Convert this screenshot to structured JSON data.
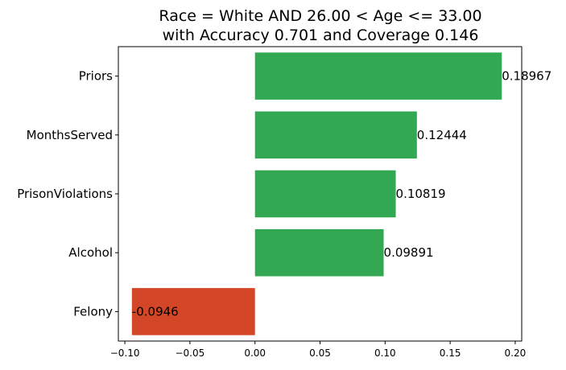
{
  "chart_data": {
    "type": "bar",
    "orientation": "horizontal",
    "title": "Race = White AND 26.00 < Age <= 33.00",
    "subtitle": "with Accuracy 0.701 and Coverage 0.146",
    "xlabel": "",
    "ylabel": "",
    "categories": [
      "Priors",
      "MonthsServed",
      "PrisonViolations",
      "Alcohol",
      "Felony"
    ],
    "values": [
      0.18967,
      0.12444,
      0.10819,
      0.09891,
      -0.0946
    ],
    "value_labels": [
      "0.18967",
      "0.12444",
      "0.10819",
      "0.09891",
      "-0.0946"
    ],
    "xlim": [
      -0.105,
      0.205
    ],
    "x_ticks": [
      -0.1,
      -0.05,
      0.0,
      0.05,
      0.1,
      0.15,
      0.2
    ],
    "x_tick_labels": [
      "−0.10",
      "−0.05",
      "0.00",
      "0.05",
      "0.10",
      "0.15",
      "0.20"
    ],
    "grid": false,
    "colors": {
      "positive": "#33a853",
      "negative": "#d34728"
    }
  }
}
